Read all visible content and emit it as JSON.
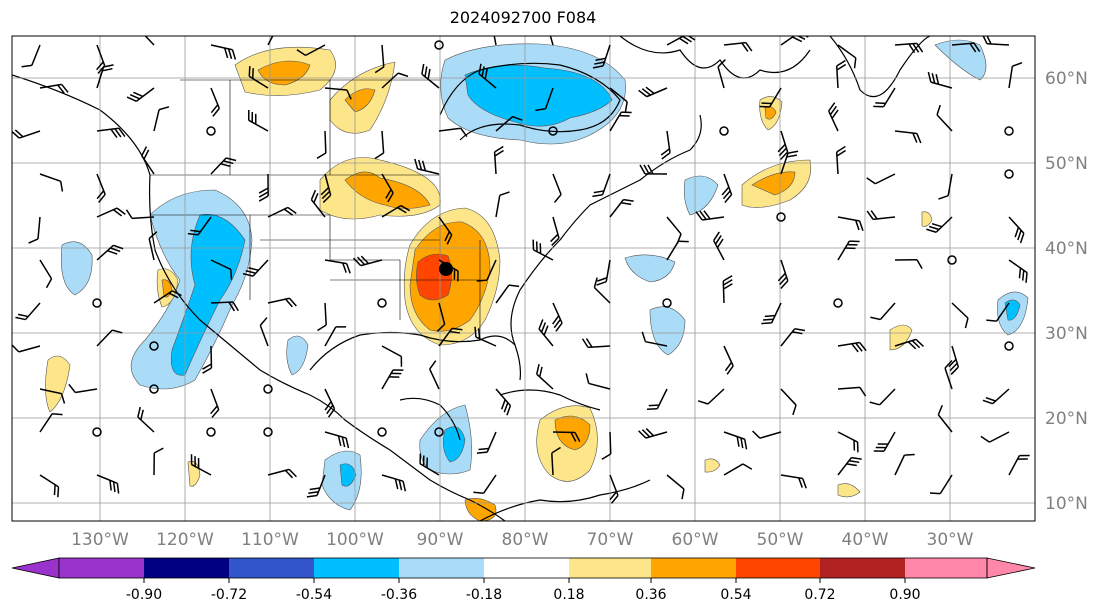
{
  "title": "2024092700 F084",
  "map": {
    "lon_labels": [
      "130°W",
      "120°W",
      "110°W",
      "100°W",
      "90°W",
      "80°W",
      "70°W",
      "60°W",
      "50°W",
      "40°W",
      "30°W"
    ],
    "lat_labels": [
      "60°N",
      "50°N",
      "40°N",
      "30°N",
      "20°N",
      "10°N"
    ],
    "gridlines": true
  },
  "colorbar": {
    "ticks": [
      "-0.90",
      "-0.72",
      "-0.54",
      "-0.36",
      "-0.18",
      "0.18",
      "0.36",
      "0.54",
      "0.72",
      "0.90"
    ],
    "colors": [
      "#9933cc",
      "#000080",
      "#3355cc",
      "#00bfff",
      "#aadcf8",
      "#ffffff",
      "#fde589",
      "#ffa500",
      "#ff4500",
      "#b22222",
      "#ff88aa"
    ],
    "extend": "both"
  },
  "colors": {
    "light_blue": "#aadcf8",
    "blue": "#00bfff",
    "yellow": "#fde589",
    "orange": "#ffa500",
    "red": "#ff4500"
  }
}
